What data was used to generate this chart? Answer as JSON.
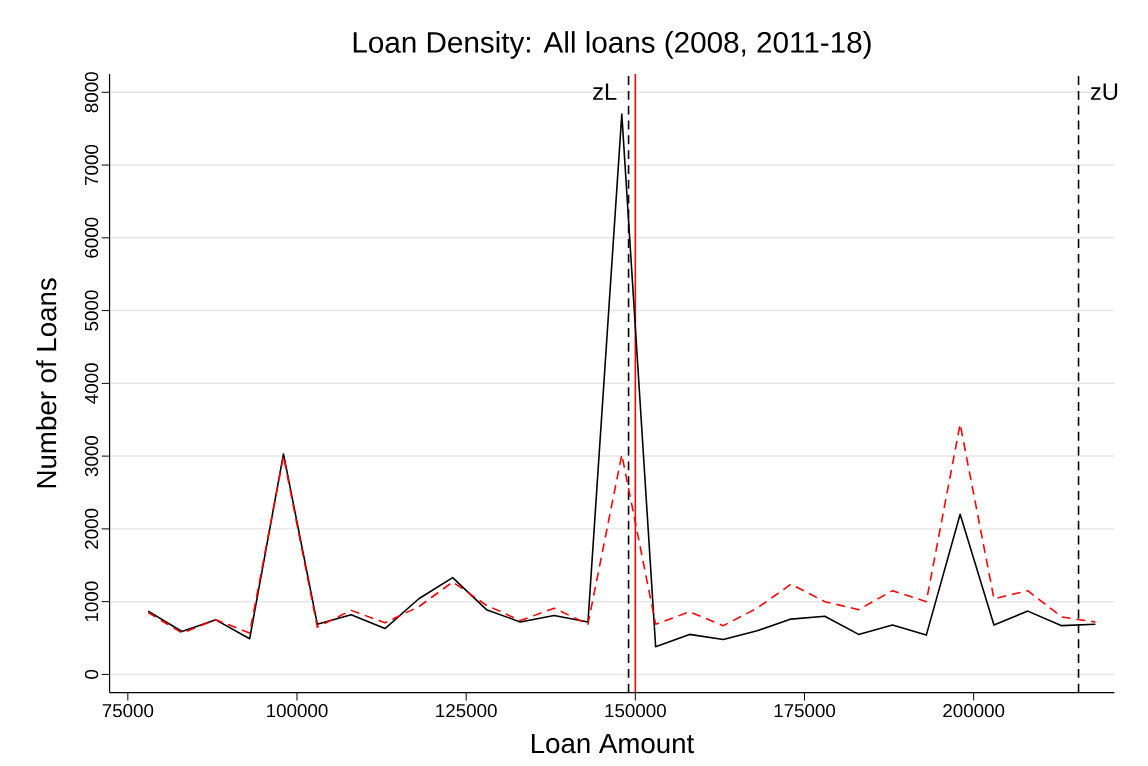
{
  "chart_data": {
    "type": "line",
    "title": "Loan Density: All loans (2008, 2011-18)",
    "xlabel": "Loan Amount",
    "ylabel": "Number of Loans",
    "x": [
      78000,
      83000,
      88000,
      93000,
      98000,
      103000,
      108000,
      113000,
      118000,
      123000,
      128000,
      133000,
      138000,
      143000,
      148000,
      153000,
      158000,
      163000,
      168000,
      173000,
      178000,
      183000,
      188000,
      193000,
      198000,
      203000,
      208000,
      213000,
      218000
    ],
    "series": [
      {
        "color": "#000000",
        "line_style": "solid",
        "values": [
          870,
          590,
          750,
          490,
          3030,
          690,
          820,
          630,
          1040,
          1330,
          890,
          720,
          810,
          720,
          7700,
          380,
          550,
          480,
          600,
          760,
          800,
          550,
          680,
          540,
          2200,
          680,
          870,
          670,
          690
        ]
      },
      {
        "color": "#ff0000",
        "line_style": "dashed",
        "values": [
          850,
          570,
          750,
          570,
          3000,
          650,
          880,
          710,
          930,
          1270,
          950,
          740,
          910,
          690,
          3020,
          690,
          860,
          670,
          910,
          1240,
          1000,
          890,
          1150,
          1000,
          3440,
          1040,
          1150,
          790,
          720
        ]
      }
    ],
    "xlim": [
      72300,
      220800
    ],
    "ylim": [
      -250,
      8250
    ],
    "xticks": [
      75000,
      100000,
      125000,
      150000,
      175000,
      200000
    ],
    "yticks": [
      0,
      1000,
      2000,
      3000,
      4000,
      5000,
      6000,
      7000,
      8000
    ],
    "grid": "y",
    "marker": "none",
    "ref_lines": [
      {
        "axis": "x",
        "value": 149000,
        "label": "zL",
        "color": "#000000",
        "line_style": "dashed"
      },
      {
        "axis": "x",
        "value": 150000,
        "color": "#ff0000",
        "line_style": "solid"
      },
      {
        "axis": "x",
        "value": 215500,
        "label": "zU",
        "color": "#000000",
        "line_style": "dashed"
      }
    ]
  }
}
